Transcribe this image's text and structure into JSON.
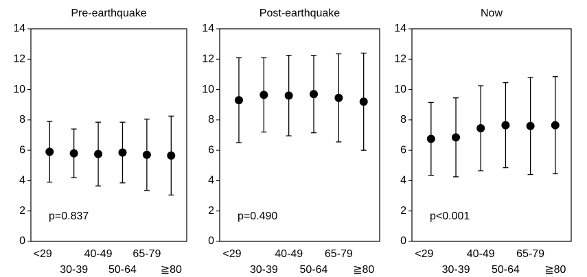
{
  "chart_data": [
    {
      "type": "errorbar",
      "title": "Pre-earthquake",
      "annotation": "p=0.837",
      "categories": [
        "<29",
        "30-39",
        "40-49",
        "50-64",
        "65-79",
        "≧80"
      ],
      "series": [
        {
          "color": "#000000",
          "values": [
            5.9,
            5.8,
            5.75,
            5.85,
            5.7,
            5.65
          ],
          "errors": [
            2.0,
            1.6,
            2.1,
            2.0,
            2.35,
            2.6
          ]
        }
      ],
      "ylim": [
        0,
        14
      ],
      "yticks": [
        0,
        2,
        4,
        6,
        8,
        10,
        12,
        14
      ],
      "grid": false
    },
    {
      "type": "errorbar",
      "title": "Post-earthquake",
      "annotation": "p=0.490",
      "categories": [
        "<29",
        "30-39",
        "40-49",
        "50-64",
        "65-79",
        "≧80"
      ],
      "series": [
        {
          "color": "#000000",
          "values": [
            9.3,
            9.65,
            9.6,
            9.7,
            9.45,
            9.2
          ],
          "errors": [
            2.8,
            2.45,
            2.65,
            2.55,
            2.9,
            3.2
          ]
        }
      ],
      "ylim": [
        0,
        14
      ],
      "yticks": [
        0,
        2,
        4,
        6,
        8,
        10,
        12,
        14
      ],
      "grid": false
    },
    {
      "type": "errorbar",
      "title": "Now",
      "annotation": "p<0.001",
      "categories": [
        "<29",
        "30-39",
        "40-49",
        "50-64",
        "65-79",
        "≧80"
      ],
      "series": [
        {
          "color": "#000000",
          "values": [
            6.75,
            6.85,
            7.45,
            7.65,
            7.6,
            7.65
          ],
          "errors": [
            2.4,
            2.6,
            2.8,
            2.8,
            3.2,
            3.2
          ]
        }
      ],
      "ylim": [
        0,
        14
      ],
      "yticks": [
        0,
        2,
        4,
        6,
        8,
        10,
        12,
        14
      ],
      "grid": false
    }
  ]
}
